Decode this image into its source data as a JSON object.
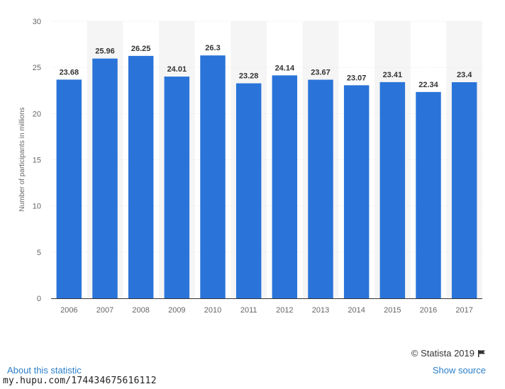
{
  "chart_data": {
    "type": "bar",
    "title": "",
    "xlabel": "",
    "ylabel": "Number of participants in millions",
    "ylim": [
      0,
      30
    ],
    "yticks": [
      0,
      5,
      10,
      15,
      20,
      25,
      30
    ],
    "grid": true,
    "categories": [
      "2006",
      "2007",
      "2008",
      "2009",
      "2010",
      "2011",
      "2012",
      "2013",
      "2014",
      "2015",
      "2016",
      "2017"
    ],
    "values": [
      23.68,
      25.96,
      26.25,
      24.01,
      26.3,
      23.28,
      24.14,
      23.67,
      23.07,
      23.41,
      22.34,
      23.4
    ],
    "value_labels": [
      "23.68",
      "25.96",
      "26.25",
      "24.01",
      "26.3",
      "23.28",
      "24.14",
      "23.67",
      "23.07",
      "23.41",
      "22.34",
      "23.4"
    ],
    "bar_color": "#2a74d9",
    "band_color": "#f5f5f5"
  },
  "footer": {
    "credit": "© Statista 2019",
    "about_link": "About this statistic",
    "source_link": "Show source",
    "watermark": "my.hupu.com/174434675616112"
  }
}
